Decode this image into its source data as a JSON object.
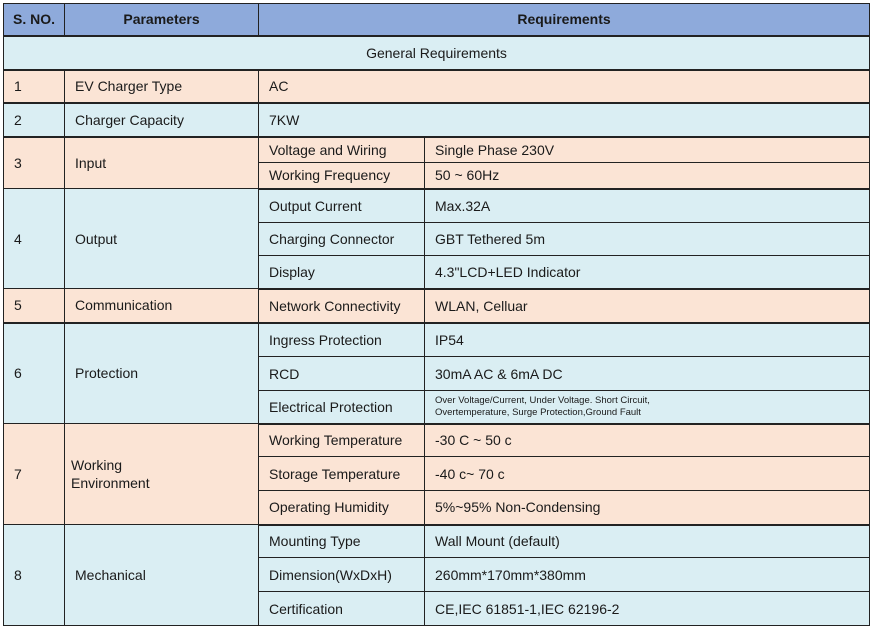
{
  "headers": {
    "sno": "S. NO.",
    "parameters": "Parameters",
    "requirements": "Requirements"
  },
  "section_title": "General Requirements",
  "rows": {
    "r1": {
      "sno": "1",
      "param": "EV Charger Type",
      "value": "AC"
    },
    "r2": {
      "sno": "2",
      "param": "Charger Capacity",
      "value": "7KW"
    },
    "r3": {
      "sno": "3",
      "param": "Input",
      "items": [
        {
          "key": "Voltage and Wiring",
          "value": "Single Phase 230V"
        },
        {
          "key": "Working Frequency",
          "value": "50 ~ 60Hz"
        }
      ]
    },
    "r4": {
      "sno": "4",
      "param": "Output",
      "items": [
        {
          "key": "Output Current",
          "value": "Max.32A"
        },
        {
          "key": "Charging Connector",
          "value": "GBT Tethered 5m"
        },
        {
          "key": "Display",
          "value": "4.3\"LCD+LED Indicator"
        }
      ]
    },
    "r5": {
      "sno": "5",
      "param": "Communication",
      "items": [
        {
          "key": "Network Connectivity",
          "value": "WLAN, Celluar"
        }
      ]
    },
    "r6": {
      "sno": "6",
      "param": "Protection",
      "items": [
        {
          "key": "Ingress Protection",
          "value": "IP54"
        },
        {
          "key": "RCD",
          "value": "30mA AC & 6mA DC"
        },
        {
          "key": "Electrical Protection",
          "value_line1": "Over Voltage/Current, Under Voltage. Short Circuit,",
          "value_line2": "Overtemperature, Surge Protection,Ground Fault"
        }
      ]
    },
    "r7": {
      "sno": "7",
      "param_line1": "Working",
      "param_line2": "Environment",
      "items": [
        {
          "key": "Working Temperature",
          "value": "-30 C ~ 50 c"
        },
        {
          "key": "Storage Temperature",
          "value": "-40 c~ 70 c"
        },
        {
          "key": "Operating Humidity",
          "value": "5%~95% Non-Condensing"
        }
      ]
    },
    "r8": {
      "sno": "8",
      "param": "Mechanical",
      "items": [
        {
          "key": "Mounting Type",
          "value": "Wall Mount (default)"
        },
        {
          "key": "Dimension(WxDxH)",
          "value": "260mm*170mm*380mm"
        },
        {
          "key": "Certification",
          "value": "CE,IEC 61851-1,IEC 62196-2"
        }
      ]
    }
  }
}
